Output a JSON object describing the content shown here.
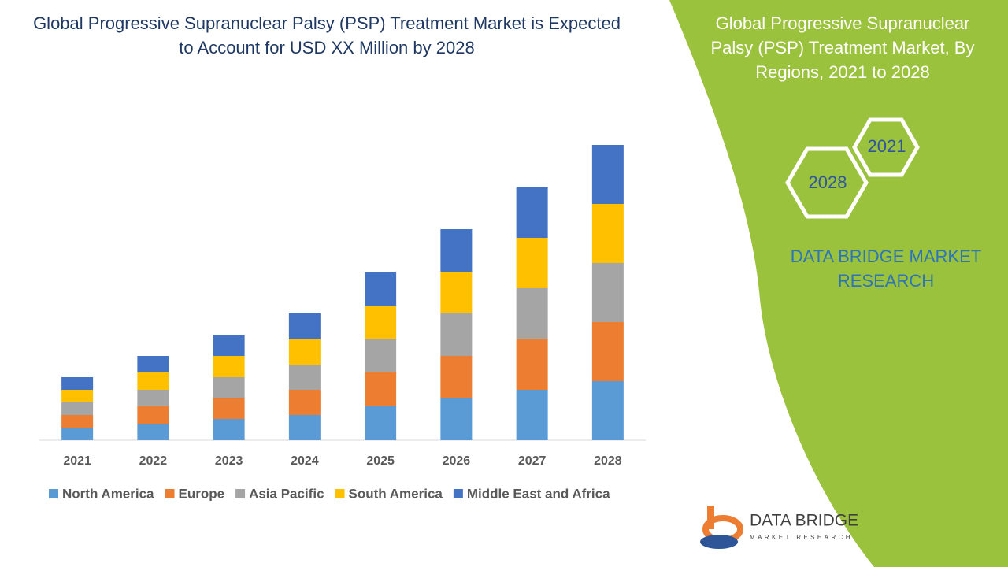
{
  "chart_data": {
    "type": "bar",
    "stacked": true,
    "title": "Global Progressive Supranuclear Palsy (PSP) Treatment Market is Expected to Account for USD XX Million by 2028",
    "categories": [
      "2021",
      "2022",
      "2023",
      "2024",
      "2025",
      "2026",
      "2027",
      "2028"
    ],
    "series": [
      {
        "name": "North America",
        "color": "#5b9bd5",
        "values": [
          16,
          21,
          27,
          32,
          43,
          54,
          64,
          75
        ]
      },
      {
        "name": "Europe",
        "color": "#ed7d31",
        "values": [
          16,
          22,
          27,
          32,
          43,
          53,
          64,
          75
        ]
      },
      {
        "name": "Asia Pacific",
        "color": "#a5a5a5",
        "values": [
          16,
          21,
          26,
          32,
          42,
          54,
          65,
          75
        ]
      },
      {
        "name": "South America",
        "color": "#ffc000",
        "values": [
          16,
          22,
          27,
          32,
          43,
          53,
          64,
          75
        ]
      },
      {
        "name": "Middle East and Africa",
        "color": "#4472c4",
        "values": [
          16,
          21,
          27,
          33,
          43,
          54,
          64,
          75
        ]
      }
    ],
    "legend": "bottom"
  },
  "panel": {
    "title": "Global Progressive Supranuclear Palsy (PSP) Treatment Market, By Regions, 2021 to 2028",
    "hex_labels": [
      "2021",
      "2028"
    ],
    "brand": "DATA BRIDGE MARKET RESEARCH",
    "logo_name": "DATA BRIDGE",
    "logo_tagline": "MARKET RESEARCH"
  }
}
